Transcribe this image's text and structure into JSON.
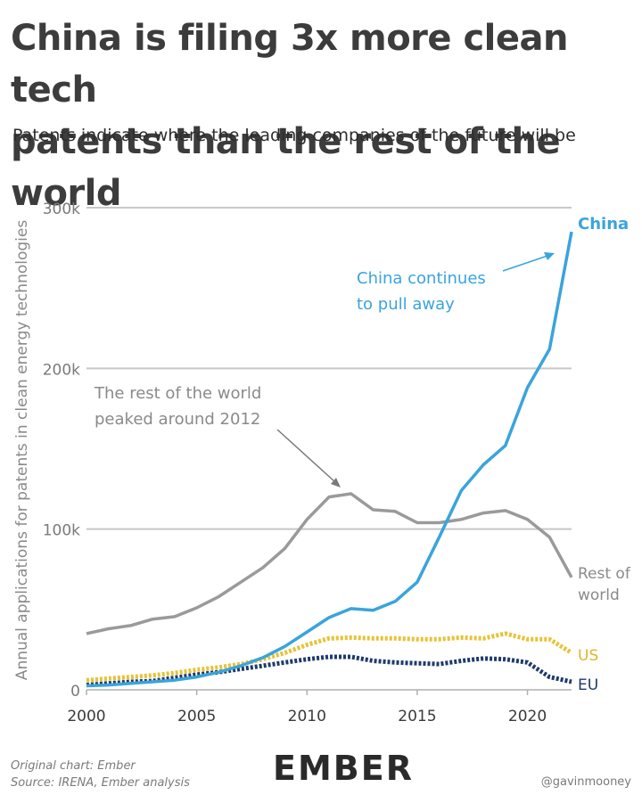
{
  "title_line1": "China is filing 3x more clean tech",
  "title_line2": "patents than the rest of the world",
  "subtitle": "Patents indicate where the leading companies of the future will be",
  "footer": {
    "original": "Original chart: Ember",
    "source": "Source: IRENA, Ember analysis",
    "logo": "EMBER",
    "credit": "@gavinmooney"
  },
  "colors": {
    "china": "#3aa4dc",
    "rest_of_world": "#9a9a9a",
    "us": "#e8c235",
    "eu": "#1f3a6b",
    "grid": "#c8c8c8"
  },
  "chart_data": {
    "type": "line",
    "ylabel": "Annual applications for patents in clean energy technologies",
    "xlabel": "",
    "xlim": [
      2000,
      2022
    ],
    "ylim": [
      0,
      300000
    ],
    "x_ticks": [
      2000,
      2005,
      2010,
      2015,
      2020
    ],
    "x_tick_labels": [
      "2000",
      "2005",
      "2010",
      "2015",
      "2020"
    ],
    "y_ticks": [
      0,
      100000,
      200000,
      300000
    ],
    "y_tick_labels": [
      "0",
      "100k",
      "200k",
      "300k"
    ],
    "grid": true,
    "x": [
      2000,
      2001,
      2002,
      2003,
      2004,
      2005,
      2006,
      2007,
      2008,
      2009,
      2010,
      2011,
      2012,
      2013,
      2014,
      2015,
      2016,
      2017,
      2018,
      2019,
      2020,
      2021,
      2022
    ],
    "series": [
      {
        "name": "China",
        "key": "china",
        "dashed": false,
        "values": [
          2500,
          3000,
          4000,
          5000,
          6000,
          8000,
          11000,
          15000,
          20000,
          27000,
          36000,
          45000,
          50500,
          49500,
          55000,
          67000,
          95000,
          124000,
          140000,
          152000,
          188000,
          212000,
          285000
        ]
      },
      {
        "name": "Rest of world",
        "key": "rest_of_world",
        "dashed": false,
        "values": [
          35000,
          38000,
          40000,
          44000,
          45500,
          51000,
          58000,
          67000,
          76000,
          88000,
          106000,
          120000,
          122000,
          112000,
          111000,
          104000,
          104000,
          106000,
          110000,
          111500,
          106000,
          95000,
          70000
        ]
      },
      {
        "name": "US",
        "key": "us",
        "dashed": true,
        "values": [
          6000,
          7000,
          8000,
          9000,
          10500,
          12500,
          14000,
          16000,
          19000,
          23000,
          28000,
          32000,
          32500,
          32000,
          32000,
          31500,
          31500,
          32500,
          32000,
          35000,
          31500,
          31500,
          23000
        ]
      },
      {
        "name": "EU",
        "key": "eu",
        "dashed": true,
        "values": [
          3000,
          4000,
          5000,
          5500,
          7500,
          9500,
          11000,
          13000,
          15000,
          17000,
          19000,
          20500,
          20500,
          18000,
          17000,
          16500,
          16000,
          18000,
          19500,
          19000,
          17000,
          8000,
          5000
        ]
      }
    ],
    "series_labels": {
      "china": "China",
      "rest_of_world_1": "Rest of",
      "rest_of_world_2": "world",
      "us": "US",
      "eu": "EU"
    },
    "annotations": [
      {
        "key": "china_note",
        "line1": "China continues",
        "line2": "to pull away",
        "color": "#3aa4dc"
      },
      {
        "key": "row_note",
        "line1": "The rest of the world",
        "line2": "peaked around 2012",
        "color": "#8a8a8a"
      }
    ]
  }
}
